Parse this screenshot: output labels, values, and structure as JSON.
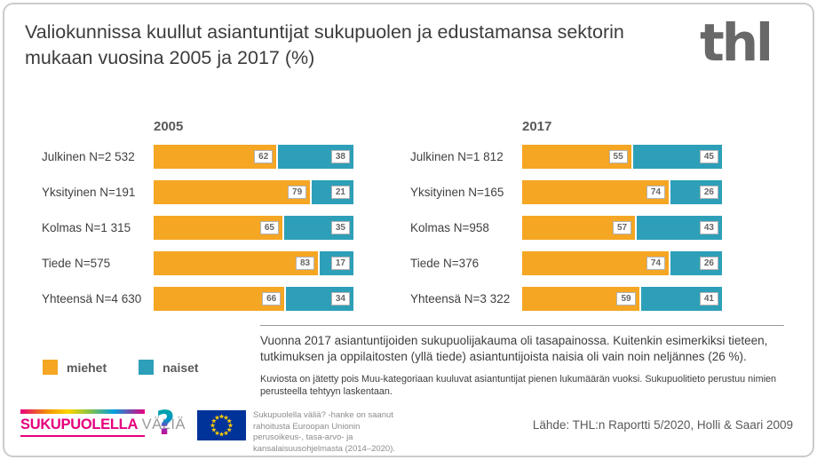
{
  "header": {
    "title": "Valiokunnissa kuullut asiantuntijat sukupuolen ja edustamansa sektorin mukaan vuosina 2005 ja 2017 (%)",
    "org_logo": "thl"
  },
  "chart_data": {
    "type": "bar",
    "orientation": "horizontal",
    "stacked": true,
    "unit": "%",
    "xlim": [
      0,
      100
    ],
    "grid": false,
    "value_labels": "shown in white boxes at segment ends",
    "colors": {
      "miehet": "#F5A623",
      "naiset": "#2E9FB8"
    },
    "groups": [
      {
        "title": "2005",
        "categories": [
          "Julkinen N=2 532",
          "Yksityinen N=191",
          "Kolmas N=1 315",
          "Tiede N=575",
          "Yhteensä N=4 630"
        ],
        "series": [
          {
            "name": "miehet",
            "values": [
              62,
              79,
              65,
              83,
              66
            ]
          },
          {
            "name": "naiset",
            "values": [
              38,
              21,
              35,
              17,
              34
            ]
          }
        ]
      },
      {
        "title": "2017",
        "categories": [
          "Julkinen N=1 812",
          "Yksityinen N=165",
          "Kolmas N=958",
          "Tiede N=376",
          "Yhteensä N=3 322"
        ],
        "series": [
          {
            "name": "miehet",
            "values": [
              55,
              74,
              57,
              74,
              59
            ]
          },
          {
            "name": "naiset",
            "values": [
              45,
              26,
              43,
              26,
              41
            ]
          }
        ]
      }
    ]
  },
  "legend": {
    "items": [
      {
        "label": "miehet",
        "color": "#F5A623"
      },
      {
        "label": "naiset",
        "color": "#2E9FB8"
      }
    ],
    "position": "bottom-left"
  },
  "notes": {
    "paragraph1": "Vuonna 2017 asiantuntijoiden sukupuolijakauma oli tasapainossa. Kuitenkin esimerkiksi tieteen, tutkimuksen ja oppilaitosten (yllä tiede) asiantuntijoista naisia oli vain noin neljännes (26 %).",
    "paragraph2": "Kuviosta on jätetty pois Muu-kategoriaan kuuluvat asiantuntijat pienen lukumäärän vuoksi. Sukupuolitieto perustuu nimien perusteella tehtyyn laskentaan."
  },
  "footer": {
    "project_logo": {
      "word1": "SUKUPUOLELLA",
      "word2": "VÄLIÄ",
      "mark": "?"
    },
    "eu_funding_text": "Sukupuolella väliä? -hanke on saanut rahoitusta Euroopan Unionin perusoikeus-, tasa-arvo- ja kansalaisuusohjelmasta (2014–2020).",
    "source": "Lähde: THL:n Raportti 5/2020, Holli & Saari 2009"
  }
}
